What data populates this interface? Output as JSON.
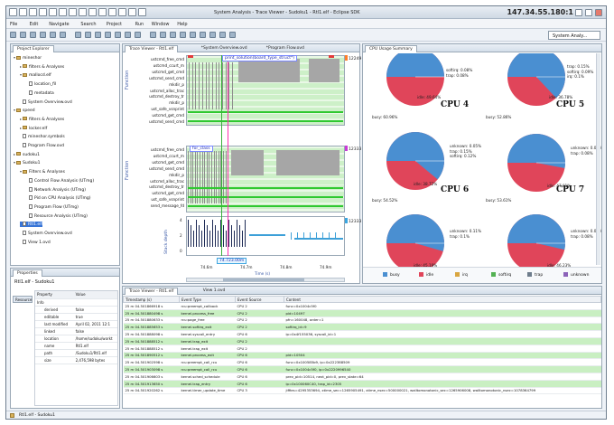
{
  "window": {
    "title": "System Analysis - Trace Viewer - Sudoku1 - Rtl1.elf - Eclipse SDK",
    "ip": "147.34.55.180:1"
  },
  "menu": [
    "File",
    "Edit",
    "Navigate",
    "Search",
    "Project",
    "Run",
    "Window",
    "Help"
  ],
  "perspective": "System Analy...",
  "project_explorer": {
    "tab": "Project Explorer",
    "items": [
      {
        "label": "mineshor",
        "kind": "folder",
        "open": true,
        "indent": 0
      },
      {
        "label": "filters & Analyses",
        "kind": "folder",
        "open": false,
        "indent": 1
      },
      {
        "label": "mallocd.elf",
        "kind": "folder",
        "open": true,
        "indent": 1
      },
      {
        "label": "location_fil",
        "kind": "file",
        "indent": 2
      },
      {
        "label": "metadata",
        "kind": "file",
        "indent": 2
      },
      {
        "label": "System Overview.ovd",
        "kind": "file",
        "indent": 1
      },
      {
        "label": "speed",
        "kind": "folder",
        "open": true,
        "indent": 0
      },
      {
        "label": "filters & Analyses",
        "kind": "folder",
        "open": false,
        "indent": 1
      },
      {
        "label": "locker.elf",
        "kind": "folder",
        "open": false,
        "indent": 1
      },
      {
        "label": "mineshor.symbols",
        "kind": "file",
        "indent": 1
      },
      {
        "label": "Program Flow.ovd",
        "kind": "file",
        "indent": 1
      },
      {
        "label": "sudoku1",
        "kind": "folder",
        "open": false,
        "indent": 0
      },
      {
        "label": "Sudoku1",
        "kind": "folder",
        "open": true,
        "indent": 0
      },
      {
        "label": "Filters & Analyses",
        "kind": "folder",
        "open": true,
        "indent": 1
      },
      {
        "label": "Control Flow Analysis (UTmg)",
        "kind": "file",
        "indent": 2
      },
      {
        "label": "Network Analysis (UTmg)",
        "kind": "file",
        "indent": 2
      },
      {
        "label": "Pid on CPU Analysis (UTmg)",
        "kind": "file",
        "indent": 2
      },
      {
        "label": "Program Flow (UTmg)",
        "kind": "file",
        "indent": 2
      },
      {
        "label": "Resource Analysis (UTmg)",
        "kind": "file",
        "indent": 2
      },
      {
        "label": "Rtl1.elf",
        "kind": "file",
        "indent": 1,
        "selected": true
      },
      {
        "label": "System Overview.ovd",
        "kind": "file",
        "indent": 1
      },
      {
        "label": "View 1.ovd",
        "kind": "file",
        "indent": 1
      }
    ]
  },
  "properties": {
    "tab": "Properties",
    "title": "Rtl1.elf - Sudoku1",
    "side_label": "Resource",
    "col_property": "Property",
    "col_value": "Value",
    "rows": [
      {
        "k": "Info",
        "v": ""
      },
      {
        "k": "derived",
        "v": "false"
      },
      {
        "k": "editable",
        "v": "true"
      },
      {
        "k": "last modified",
        "v": "April 02, 2011 12:1"
      },
      {
        "k": "linked",
        "v": "false"
      },
      {
        "k": "location",
        "v": "/home/sudoku/workt"
      },
      {
        "k": "name",
        "v": "Rtl1.elf"
      },
      {
        "k": "path",
        "v": "/Sudoku1/Rtl1.elf"
      },
      {
        "k": "size",
        "v": "2,476,598 bytes"
      }
    ]
  },
  "editor_tabs": [
    "Trace Viewer - Rtl1.elf",
    "*System Overview.ovd",
    "*Program Flow.ovd"
  ],
  "trace": {
    "function_label": "Function",
    "stack_label": "Stack depth",
    "time_label": "Time (s)",
    "badge1": "print_solution(board_type_struct*)",
    "badge2": "for_class",
    "cursor_label": "74.723.00m",
    "ids": [
      "12249",
      "12333",
      "12333"
    ],
    "functions_a": [
      "ustcmd_free_cmd",
      "ustcmd_ccurt_m",
      "ustcmd_get_cmd",
      "ustcmd_send_cmd",
      "mkdir_p",
      "ustcmd_alloc_trac",
      "ustcmd_destroy_tr",
      "mkdir_p",
      "ust_safe_vsnprint",
      "ustcmd_get_cmd",
      "ustcmd_send_cmd"
    ],
    "functions_b": [
      "ustcmd_free_cmd",
      "ustcmd_ccurt_m",
      "ustcmd_get_cmd",
      "ustcmd_send_cmd",
      "mkdir_p",
      "ustcmd_alloc_trac",
      "ustcmd_destroy_tr",
      "ustcmd_get_cmd",
      "ust_safe_vsnprint",
      "send_message_fd"
    ],
    "stack_ticks": [
      "4",
      "2",
      "0"
    ],
    "time_ticks": [
      "74.6m",
      "74.7m",
      "74.8m",
      "74.9m"
    ]
  },
  "cpu_summary": {
    "tab": "CPU Usage Summary",
    "panels": [
      {
        "title": "",
        "busy": "",
        "idle": "idle: 49.64%",
        "lines": [
          "softirq: 0.08%",
          "trap: 0.08%"
        ]
      },
      {
        "title": "",
        "busy": "",
        "idle": "idle: 36.78%",
        "lines": [
          "trap: 0.15%",
          "softirq: 0.09%",
          "irq: 0.1%"
        ]
      },
      {
        "title": "CPU 4",
        "busy": "busy: 60.96%",
        "idle": "idle: 38.72%",
        "lines": [
          "unknown: 0.05%",
          "trap: 0.15%",
          "softirq: 0.12%"
        ]
      },
      {
        "title": "CPU 5",
        "busy": "busy: 52.86%",
        "idle": "idle: 47.01%",
        "lines": [
          "unknown: 0.06%",
          "trap: 0.08%"
        ]
      },
      {
        "title": "CPU 6",
        "busy": "busy: 54.52%",
        "idle": "idle: 45.19%",
        "lines": [
          "unknown: 0.11%",
          "trap: 0.1%"
        ]
      },
      {
        "title": "CPU 7",
        "busy": "busy: 53.61%",
        "idle": "idle: 46.23%",
        "lines": [
          "unknown: 0.05%",
          "trap: 0.08%"
        ]
      }
    ],
    "legend": [
      {
        "label": "busy",
        "color": "#4a8fd1"
      },
      {
        "label": "idle",
        "color": "#e0455a"
      },
      {
        "label": "irq",
        "color": "#d9a640"
      },
      {
        "label": "softirq",
        "color": "#53b153"
      },
      {
        "label": "trap",
        "color": "#6e7d8c"
      },
      {
        "label": "unknown",
        "color": "#8c63b9"
      }
    ]
  },
  "bottom_tabs": [
    "Trace Viewer - Rtl1.elf",
    "View 1.ovd"
  ],
  "events": {
    "columns": [
      "Timestamp (s)",
      "Event Type",
      "Event Source",
      "Content"
    ],
    "rows": [
      [
        "25 m 04.501866918 s",
        "rcu:preempt_callback",
        "CPU 2",
        "func=0x1004c5f0"
      ],
      [
        "25 m 04.501880498 s",
        "kernel.process_free",
        "CPU 2",
        "pid=10497"
      ],
      [
        "25 m 04.501880633 s",
        "rcu:page_free",
        "CPU 2",
        "pfn=160048, order=1"
      ],
      [
        "25 m 04.501885653 s",
        "kernel.softirq_exit",
        "CPU 2",
        "softirq_id=9"
      ],
      [
        "25 m 04.501888098 s",
        "kernel.syscall_entry",
        "CPU 6",
        "ip=0x4f155036, syscall_id=1"
      ],
      [
        "25 m 04.501888512 s",
        "kernel.trap_exit",
        "CPU 2",
        ""
      ],
      [
        "25 m 04.501888512 s",
        "kernel.trap_exit",
        "CPU 2",
        ""
      ],
      [
        "25 m 04.501890512 s",
        "kernel.process_exit",
        "CPU 6",
        "pid=10504"
      ],
      [
        "25 m 04.501902598 s",
        "rcu:preempt_call_rcu",
        "CPU 6",
        "func=0x100585b9, ip=0x222388509"
      ],
      [
        "25 m 04.501903098 s",
        "rcu:preempt_call_rcu",
        "CPU 6",
        "func=0x1004c5f0, ip=0x2220996540"
      ],
      [
        "25 m 04.501906603 s",
        "kernel.sched_schedule",
        "CPU 6",
        "prev_pid=10514, next_pid=0, prev_state=64"
      ],
      [
        "25 m 04.501913650 s",
        "kernel.trap_entry",
        "CPU 6",
        "ip=0x100060C40, trap_id=2305"
      ],
      [
        "25 m 04.501920262 s",
        "kernel.timer_update_time",
        "CPU 3",
        "jiffies=4295353694, xtime_sec=1265905491, xtime_nsec=500000021, walltomonotonic_sec=1265906008, walltomonotonic_nsec=1078364799"
      ]
    ]
  },
  "status": "Rtl1.elf - Sudoku1"
}
